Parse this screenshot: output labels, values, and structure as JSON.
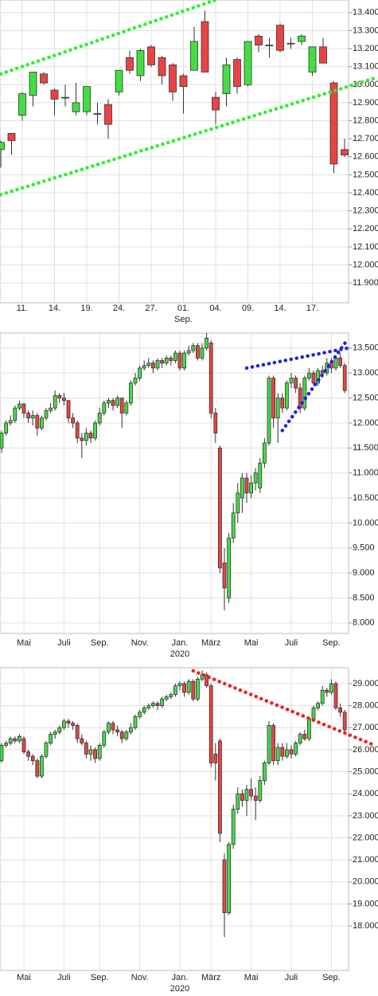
{
  "chart_data": [
    {
      "type": "candlestick",
      "categories": [
        null,
        null,
        "11.",
        null,
        null,
        "14.",
        null,
        null,
        "19.",
        null,
        null,
        "24.",
        null,
        null,
        "27.",
        null,
        null,
        "01.",
        null,
        null,
        "04.",
        null,
        null,
        "09.",
        null,
        null,
        "14.",
        null,
        null,
        "17.",
        null,
        null,
        null
      ],
      "x_sublabel": {
        "label": "Sep.",
        "under": "01."
      },
      "open": [
        12640,
        12730,
        12830,
        12940,
        13060,
        12970,
        12930,
        12850,
        12850,
        12840,
        12890,
        12960,
        13150,
        13050,
        13210,
        13150,
        13110,
        13050,
        13080,
        13350,
        12930,
        12950,
        13140,
        13000,
        13270,
        13220,
        13330,
        13230,
        13240,
        13070,
        13210,
        13010,
        12640
      ],
      "close": [
        12680,
        12690,
        12950,
        13070,
        13010,
        12920,
        12930,
        12900,
        12990,
        12840,
        12780,
        13080,
        13080,
        13190,
        13110,
        13050,
        12960,
        12990,
        13240,
        13070,
        12860,
        13110,
        12990,
        13240,
        13220,
        13220,
        13190,
        13230,
        13270,
        13210,
        13120,
        12560,
        12610
      ],
      "high": [
        12690,
        12730,
        12960,
        13070,
        13070,
        12980,
        13000,
        13010,
        12990,
        12900,
        12920,
        13080,
        13190,
        13200,
        13220,
        13160,
        13120,
        13060,
        13320,
        13410,
        12960,
        13150,
        13150,
        13240,
        13280,
        13260,
        13340,
        13260,
        13280,
        13210,
        13260,
        13020,
        12700
      ],
      "low": [
        12540,
        12610,
        12800,
        12880,
        13000,
        12830,
        12880,
        12830,
        12830,
        12780,
        12700,
        12940,
        13060,
        13020,
        13100,
        13000,
        12910,
        12840,
        13080,
        13070,
        12780,
        12880,
        12950,
        12990,
        13180,
        13150,
        13180,
        13200,
        13220,
        13050,
        13120,
        12510,
        12600
      ],
      "up_color": "#44dd44",
      "down_color": "#e84444",
      "ylim": [
        11790,
        13470
      ],
      "yticks": [
        {
          "value": 11900,
          "label": "11.900"
        },
        {
          "value": 12000,
          "label": "12.000"
        },
        {
          "value": 12100,
          "label": "12.100"
        },
        {
          "value": 12200,
          "label": "12.200"
        },
        {
          "value": 12300,
          "label": "12.300"
        },
        {
          "value": 12400,
          "label": "12.400"
        },
        {
          "value": 12500,
          "label": "12.500"
        },
        {
          "value": 12600,
          "label": "12.600"
        },
        {
          "value": 12700,
          "label": "12.700"
        },
        {
          "value": 12800,
          "label": "12.800"
        },
        {
          "value": 12900,
          "label": "12.900"
        },
        {
          "value": 13000,
          "label": "13.000"
        },
        {
          "value": 13100,
          "label": "13.100"
        },
        {
          "value": 13200,
          "label": "13.200"
        },
        {
          "value": 13300,
          "label": "13.300"
        },
        {
          "value": 13400,
          "label": "13.400"
        }
      ],
      "grid": true,
      "trendlines": [
        {
          "color": "#33ee33",
          "from": [
            0,
            13060
          ],
          "to": [
            20,
            13470
          ]
        },
        {
          "color": "#33ee33",
          "from": [
            0,
            12390
          ],
          "to": [
            35,
            13040
          ]
        }
      ]
    },
    {
      "type": "candlestick",
      "categories": [
        null,
        null,
        null,
        null,
        null,
        "Mai",
        null,
        null,
        null,
        null,
        null,
        null,
        null,
        null,
        "Juli",
        null,
        null,
        null,
        null,
        null,
        null,
        null,
        "Sep.",
        null,
        null,
        null,
        null,
        null,
        null,
        null,
        null,
        "Nov.",
        null,
        null,
        null,
        null,
        null,
        null,
        null,
        null,
        "Jan.",
        null,
        null,
        null,
        null,
        null,
        null,
        "März",
        null,
        null,
        null,
        null,
        null,
        null,
        null,
        null,
        "Mai",
        null,
        null,
        null,
        null,
        null,
        null,
        null,
        null,
        "Juli",
        null,
        null,
        null,
        null,
        null,
        null,
        null,
        null,
        "Sep.",
        null,
        null,
        null
      ],
      "x_sublabel": {
        "label": "2020",
        "under": "Jan."
      },
      "open": [
        11500,
        11800,
        12000,
        12050,
        12300,
        12380,
        12200,
        12100,
        12150,
        11900,
        12100,
        12250,
        12300,
        12550,
        12500,
        12450,
        12100,
        12000,
        11700,
        11650,
        11800,
        11700,
        12000,
        12200,
        12400,
        12450,
        12350,
        12500,
        12200,
        12400,
        12800,
        12900,
        13100,
        13150,
        13200,
        13100,
        13250,
        13200,
        13300,
        13250,
        13400,
        13100,
        13400,
        13450,
        13550,
        13300,
        13500,
        13600,
        12200,
        11500,
        9200,
        8500,
        9700,
        10200,
        10500,
        10900,
        10600,
        10800,
        10700,
        11200,
        11600,
        12900,
        12100,
        12500,
        12300,
        12800,
        12900,
        12700,
        12300,
        12900,
        13000,
        12800,
        13050,
        13000,
        13200,
        13100,
        13300,
        13150
      ],
      "close": [
        11800,
        12000,
        12050,
        12300,
        12380,
        12200,
        12100,
        12150,
        11900,
        12100,
        12250,
        12300,
        12550,
        12500,
        12450,
        12100,
        12000,
        11700,
        11650,
        11800,
        11700,
        12000,
        12200,
        12400,
        12450,
        12350,
        12500,
        12200,
        12400,
        12800,
        12900,
        13100,
        13150,
        13200,
        13100,
        13250,
        13200,
        13300,
        13250,
        13400,
        13100,
        13400,
        13450,
        13550,
        13300,
        13500,
        13700,
        12200,
        11800,
        9100,
        8700,
        9700,
        10200,
        10600,
        10900,
        10600,
        10800,
        11000,
        11200,
        11600,
        12900,
        12100,
        12500,
        12300,
        12800,
        12900,
        12700,
        12300,
        12900,
        13000,
        12800,
        13050,
        13000,
        13200,
        13100,
        13300,
        13150,
        12650
      ],
      "high": [
        11850,
        12050,
        12150,
        12350,
        12450,
        12400,
        12250,
        12250,
        12200,
        12150,
        12300,
        12400,
        12650,
        12600,
        12600,
        12450,
        12200,
        12050,
        11800,
        11900,
        11850,
        12050,
        12300,
        12450,
        12500,
        12500,
        12550,
        12500,
        12450,
        12850,
        13000,
        13150,
        13250,
        13300,
        13250,
        13300,
        13300,
        13350,
        13350,
        13450,
        13450,
        13450,
        13550,
        13600,
        13600,
        13600,
        13800,
        13650,
        12300,
        11550,
        9500,
        9800,
        10400,
        10800,
        11000,
        11000,
        10950,
        11100,
        11300,
        11700,
        12950,
        12950,
        12600,
        12600,
        12850,
        13000,
        12950,
        12800,
        12950,
        13100,
        13050,
        13100,
        13150,
        13300,
        13300,
        13350,
        13400,
        13200
      ],
      "low": [
        11400,
        11750,
        11950,
        12000,
        12250,
        12100,
        12000,
        11950,
        11750,
        11850,
        12050,
        12200,
        12250,
        12400,
        12350,
        12000,
        11900,
        11600,
        11300,
        11550,
        11600,
        11650,
        11950,
        12150,
        12300,
        12250,
        12300,
        11900,
        12150,
        12350,
        12750,
        12850,
        13050,
        13100,
        13000,
        13050,
        13100,
        13150,
        13150,
        13200,
        13050,
        13050,
        13350,
        13400,
        13250,
        13250,
        13450,
        12100,
        11600,
        9000,
        8250,
        8400,
        9600,
        10000,
        10200,
        10400,
        10500,
        10650,
        10600,
        11100,
        11550,
        11900,
        11600,
        12200,
        12250,
        12700,
        12600,
        12200,
        12250,
        12850,
        12750,
        12750,
        12900,
        12950,
        13000,
        13050,
        13100,
        12600
      ],
      "up_color": "#44dd44",
      "down_color": "#e84444",
      "ylim": [
        7790,
        13800
      ],
      "yticks": [
        {
          "value": 8000,
          "label": "8.000"
        },
        {
          "value": 8500,
          "label": "8.500"
        },
        {
          "value": 9000,
          "label": "9.000"
        },
        {
          "value": 9500,
          "label": "9.500"
        },
        {
          "value": 10000,
          "label": "10.000"
        },
        {
          "value": 10500,
          "label": "10.500"
        },
        {
          "value": 11000,
          "label": "11.000"
        },
        {
          "value": 11500,
          "label": "11.500"
        },
        {
          "value": 12000,
          "label": "12.000"
        },
        {
          "value": 12500,
          "label": "12.500"
        },
        {
          "value": 13000,
          "label": "13.000"
        },
        {
          "value": 13500,
          "label": "13.500"
        }
      ],
      "grid": true,
      "trendlines": [
        {
          "color": "#2222dd",
          "from": [
            55,
            13100
          ],
          "to": [
            77.7,
            13500
          ]
        },
        {
          "color": "#2222dd",
          "from": [
            63,
            11850
          ],
          "to": [
            77.7,
            13680
          ]
        }
      ]
    },
    {
      "type": "candlestick",
      "categories": [
        null,
        null,
        null,
        null,
        null,
        "Mai",
        null,
        null,
        null,
        null,
        null,
        null,
        null,
        null,
        "Juli",
        null,
        null,
        null,
        null,
        null,
        null,
        null,
        "Sep.",
        null,
        null,
        null,
        null,
        null,
        null,
        null,
        null,
        "Nov.",
        null,
        null,
        null,
        null,
        null,
        null,
        null,
        null,
        "Jan.",
        null,
        null,
        null,
        null,
        null,
        null,
        "März",
        null,
        null,
        null,
        null,
        null,
        null,
        null,
        null,
        "Mai",
        null,
        null,
        null,
        null,
        null,
        null,
        null,
        null,
        "Juli",
        null,
        null,
        null,
        null,
        null,
        null,
        null,
        null,
        "Sep.",
        null,
        null,
        null
      ],
      "x_sublabel": {
        "label": "2020",
        "under": "Jan."
      },
      "open": [
        25500,
        26200,
        26300,
        26500,
        26400,
        26500,
        25900,
        25700,
        25500,
        24800,
        25700,
        26300,
        26700,
        26800,
        27000,
        27300,
        27200,
        27100,
        26500,
        26300,
        25800,
        26000,
        25600,
        26200,
        26800,
        27200,
        26900,
        26800,
        26500,
        26800,
        27000,
        27500,
        27700,
        27900,
        28000,
        28100,
        28000,
        28300,
        28400,
        28500,
        28900,
        29000,
        28600,
        29100,
        28300,
        29200,
        29400,
        28900,
        25800,
        26400,
        21000,
        18600,
        21700,
        23300,
        24000,
        23700,
        24200,
        23900,
        23700,
        24600,
        25400,
        27100,
        25500,
        26100,
        25700,
        26000,
        25800,
        26300,
        26700,
        26500,
        27400,
        27900,
        28100,
        28700,
        28600,
        29000,
        27900,
        27700
      ],
      "close": [
        26200,
        26300,
        26500,
        26400,
        26600,
        25900,
        25700,
        25500,
        24800,
        25700,
        26300,
        26700,
        26800,
        27000,
        27300,
        27200,
        27100,
        26500,
        26300,
        25800,
        26000,
        25600,
        26200,
        26800,
        27200,
        26900,
        26800,
        26500,
        26800,
        27000,
        27500,
        27700,
        27900,
        28000,
        28100,
        28000,
        28300,
        28400,
        28500,
        28900,
        29000,
        28600,
        29100,
        28300,
        29200,
        29400,
        28900,
        25400,
        25400,
        22200,
        18600,
        21700,
        23300,
        24000,
        23700,
        24200,
        23900,
        23700,
        24600,
        25400,
        27100,
        25500,
        26100,
        25700,
        26000,
        25800,
        26300,
        26700,
        26500,
        27400,
        27900,
        28100,
        28700,
        28600,
        29000,
        27900,
        27700,
        26900
      ],
      "high": [
        26300,
        26400,
        26600,
        26600,
        26700,
        26600,
        26000,
        25800,
        25600,
        25800,
        26400,
        26800,
        26900,
        27100,
        27400,
        27400,
        27300,
        27200,
        26700,
        26400,
        26200,
        26100,
        26300,
        26900,
        27300,
        27300,
        27100,
        26900,
        26900,
        27200,
        27600,
        27800,
        28000,
        28100,
        28200,
        28200,
        28400,
        28500,
        28600,
        29000,
        29100,
        29100,
        29200,
        29200,
        29300,
        29600,
        29500,
        29000,
        26300,
        26500,
        21300,
        21800,
        23500,
        24300,
        24200,
        24400,
        24700,
        24300,
        24800,
        25500,
        27300,
        27200,
        26300,
        26300,
        26300,
        26200,
        26400,
        26800,
        26900,
        27500,
        28000,
        28200,
        28900,
        28800,
        29200,
        29100,
        28100,
        27800
      ],
      "low": [
        25400,
        26100,
        26200,
        26300,
        26300,
        25800,
        25500,
        25300,
        24700,
        24700,
        25600,
        26200,
        26500,
        26700,
        26900,
        27000,
        26900,
        26300,
        26200,
        25600,
        25500,
        25400,
        25500,
        26100,
        26700,
        26700,
        26600,
        26300,
        26400,
        26700,
        26900,
        27400,
        27600,
        27800,
        27900,
        27800,
        27900,
        28200,
        28300,
        28400,
        28700,
        28400,
        28500,
        28200,
        28200,
        29100,
        28800,
        25200,
        24600,
        21800,
        17500,
        18500,
        21500,
        23100,
        23400,
        23000,
        23700,
        22800,
        23600,
        24400,
        25300,
        25300,
        25300,
        25500,
        25600,
        25600,
        25700,
        26200,
        26400,
        26400,
        27300,
        27800,
        28000,
        28400,
        28500,
        27800,
        27500,
        26800
      ],
      "up_color": "#44dd44",
      "down_color": "#e84444",
      "ylim": [
        15980,
        29720
      ],
      "yticks": [
        {
          "value": 18000,
          "label": "18.000"
        },
        {
          "value": 19000,
          "label": "19.000"
        },
        {
          "value": 20000,
          "label": "20.000"
        },
        {
          "value": 21000,
          "label": "21.000"
        },
        {
          "value": 22000,
          "label": "22.000"
        },
        {
          "value": 23000,
          "label": "23.000"
        },
        {
          "value": 24000,
          "label": "24.000"
        },
        {
          "value": 25000,
          "label": "25.000"
        },
        {
          "value": 26000,
          "label": "26.000"
        },
        {
          "value": 27000,
          "label": "27.000"
        },
        {
          "value": 28000,
          "label": "28.000"
        },
        {
          "value": 29000,
          "label": "29.000"
        }
      ],
      "grid": true,
      "trendlines": [
        {
          "color": "#ee2222",
          "from": [
            43,
            29580
          ],
          "to": [
            83.6,
            26210
          ]
        }
      ]
    }
  ]
}
